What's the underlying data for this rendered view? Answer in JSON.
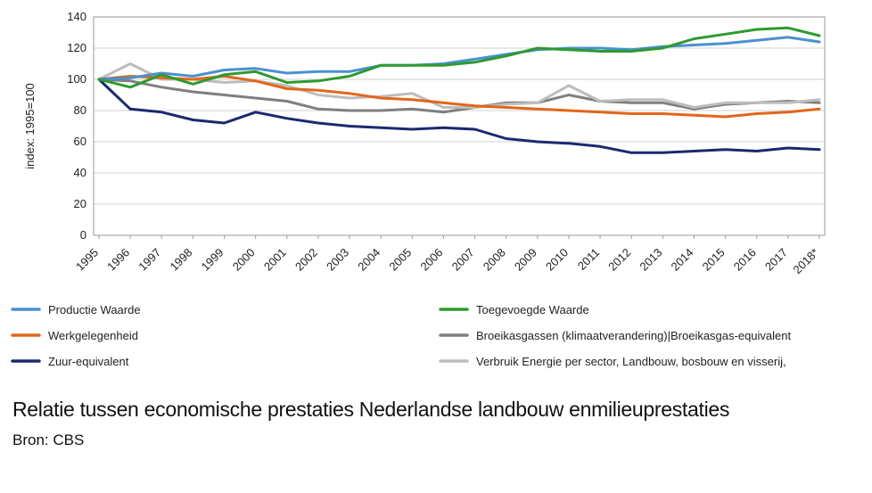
{
  "chart_data": {
    "type": "line",
    "ylabel": "index: 1995=100",
    "ylim": [
      0,
      140
    ],
    "yticks": [
      0,
      20,
      40,
      60,
      80,
      100,
      120,
      140
    ],
    "grid": true,
    "legend_position": "bottom",
    "categories": [
      "1995",
      "1996",
      "1997",
      "1998",
      "1999",
      "2000",
      "2001",
      "2002",
      "2003",
      "2004",
      "2005",
      "2006",
      "2007",
      "2008",
      "2009",
      "2010",
      "2011",
      "2012",
      "2013",
      "2014",
      "2015",
      "2016",
      "2017",
      "2018*"
    ],
    "series": [
      {
        "name": "Productie Waarde",
        "color": "#4a90d0",
        "values": [
          100,
          101,
          104,
          102,
          106,
          107,
          104,
          105,
          105,
          109,
          109,
          110,
          113,
          116,
          119,
          120,
          120,
          119,
          121,
          122,
          123,
          125,
          127,
          124
        ]
      },
      {
        "name": "Toegevoegde Waarde",
        "color": "#2e9a2e",
        "values": [
          100,
          95,
          103,
          97,
          103,
          105,
          98,
          99,
          102,
          109,
          109,
          109,
          111,
          115,
          120,
          119,
          118,
          118,
          120,
          126,
          129,
          132,
          133,
          128
        ]
      },
      {
        "name": "Werkgelegenheid",
        "color": "#e2661a",
        "values": [
          100,
          102,
          101,
          100,
          102,
          99,
          94,
          93,
          91,
          88,
          87,
          85,
          83,
          82,
          81,
          80,
          79,
          78,
          78,
          77,
          76,
          78,
          79,
          81
        ]
      },
      {
        "name": "Broeikasgassen (klimaatverandering)|Broeikasgas-equivalent",
        "color": "#7f7f7f",
        "values": [
          100,
          99,
          95,
          92,
          90,
          88,
          86,
          81,
          80,
          80,
          81,
          79,
          82,
          85,
          85,
          90,
          86,
          85,
          85,
          81,
          84,
          85,
          86,
          85
        ]
      },
      {
        "name": "Zuur-equivalent",
        "color": "#1a2a6e",
        "values": [
          100,
          81,
          79,
          74,
          72,
          79,
          75,
          72,
          70,
          69,
          68,
          69,
          68,
          62,
          60,
          59,
          57,
          53,
          53,
          54,
          55,
          54,
          56,
          55
        ]
      },
      {
        "name": "Verbruik Energie per sector, Landbouw, bosbouw en visserij,",
        "color": "#bdbdbd",
        "values": [
          100,
          110,
          100,
          100,
          98,
          99,
          96,
          90,
          88,
          89,
          91,
          82,
          82,
          84,
          85,
          96,
          86,
          87,
          87,
          82,
          85,
          85,
          85,
          87
        ]
      }
    ]
  },
  "caption": {
    "title": "Relatie tussen economische prestaties Nederlandse landbouw enmilieuprestaties",
    "source": "Bron: CBS"
  }
}
